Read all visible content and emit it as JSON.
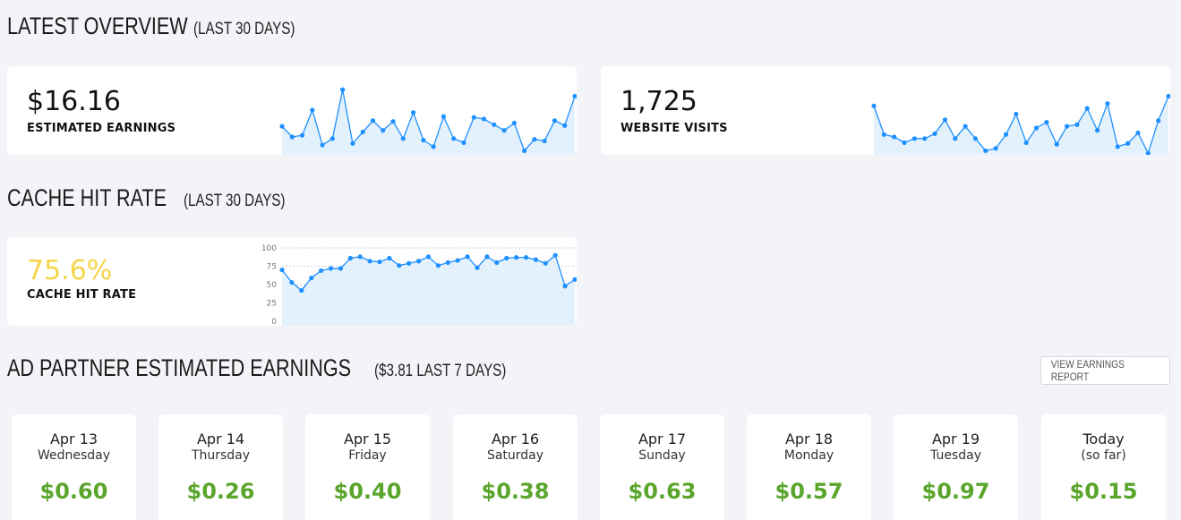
{
  "overview": {
    "title": "LATEST OVERVIEW",
    "subtitle": "(LAST 30 DAYS)",
    "earnings": {
      "value": "$16.16",
      "label": "ESTIMATED EARNINGS"
    },
    "visits": {
      "value": "1,725",
      "label": "WEBSITE VISITS"
    }
  },
  "cache": {
    "title": "CACHE HIT RATE",
    "subtitle": "(LAST 30 DAYS)",
    "value": "75.6%",
    "label": "CACHE HIT RATE",
    "value_color": "#f5d547",
    "ticks": [
      "100",
      "75",
      "50",
      "25",
      "0"
    ]
  },
  "ad_partner": {
    "title": "AD PARTNER ESTIMATED EARNINGS",
    "subtitle": "($3.81 LAST 7 DAYS)",
    "report_button": "VIEW EARNINGS REPORT",
    "days": [
      {
        "date": "Apr 13",
        "day": "Wednesday",
        "amount": "$0.60"
      },
      {
        "date": "Apr 14",
        "day": "Thursday",
        "amount": "$0.26"
      },
      {
        "date": "Apr 15",
        "day": "Friday",
        "amount": "$0.40"
      },
      {
        "date": "Apr 16",
        "day": "Saturday",
        "amount": "$0.38"
      },
      {
        "date": "Apr 17",
        "day": "Sunday",
        "amount": "$0.63"
      },
      {
        "date": "Apr 18",
        "day": "Monday",
        "amount": "$0.57"
      },
      {
        "date": "Apr 19",
        "day": "Tuesday",
        "amount": "$0.97"
      },
      {
        "date": "Today",
        "day": "(so far)",
        "amount": "$0.15"
      }
    ]
  },
  "colors": {
    "accent": "#1e90ff",
    "fill": "#e3f1fd",
    "money": "#5aa52c"
  },
  "chart_data": [
    {
      "type": "area",
      "title": "",
      "ylim": [
        0,
        1
      ],
      "values": [
        0.35,
        0.22,
        0.24,
        0.55,
        0.12,
        0.2,
        0.8,
        0.14,
        0.28,
        0.42,
        0.3,
        0.41,
        0.2,
        0.52,
        0.18,
        0.1,
        0.47,
        0.2,
        0.15,
        0.46,
        0.44,
        0.37,
        0.3,
        0.39,
        0.05,
        0.19,
        0.17,
        0.42,
        0.36,
        0.72
      ]
    },
    {
      "type": "area",
      "title": "",
      "ylim": [
        0,
        1
      ],
      "values": [
        0.6,
        0.25,
        0.22,
        0.15,
        0.2,
        0.2,
        0.26,
        0.43,
        0.2,
        0.35,
        0.2,
        0.05,
        0.08,
        0.25,
        0.5,
        0.15,
        0.33,
        0.4,
        0.13,
        0.35,
        0.37,
        0.57,
        0.3,
        0.63,
        0.1,
        0.14,
        0.27,
        0.02,
        0.42,
        0.72
      ]
    },
    {
      "type": "area",
      "title": "",
      "ylim": [
        0,
        100
      ],
      "grid": true,
      "values": [
        70,
        53,
        42,
        59,
        69,
        72,
        72,
        86,
        88,
        82,
        81,
        86,
        76,
        79,
        82,
        88,
        76,
        80,
        83,
        88,
        73,
        88,
        80,
        86,
        87,
        87,
        84,
        79,
        90,
        48,
        57
      ]
    }
  ]
}
